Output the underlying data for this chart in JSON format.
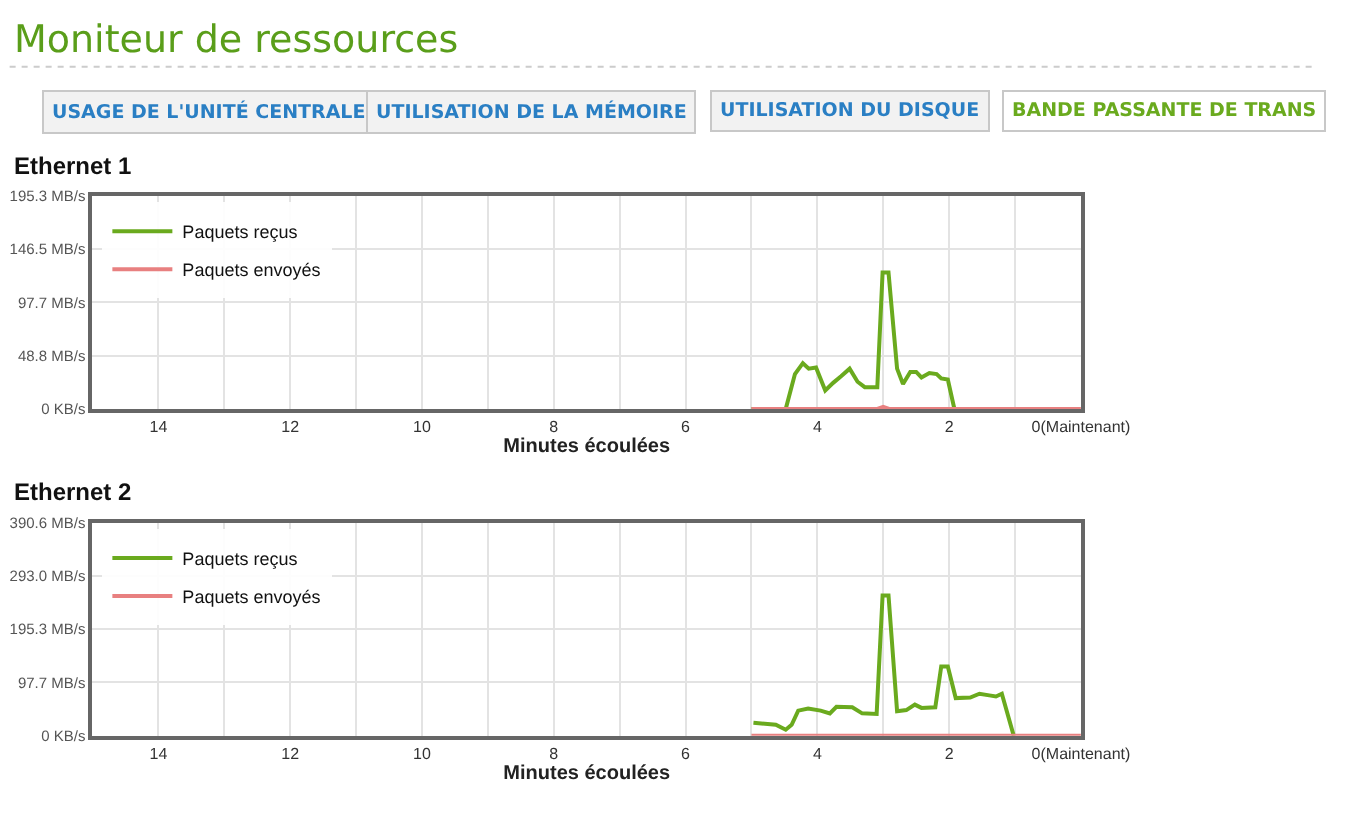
{
  "chart_data": [
    {
      "type": "other",
      "title": "Moniteur de ressources",
      "annotations": [
        "USAGE DE L'UNITÉ CENTRALE",
        "UTILISATION DE LA MÉMOIRE",
        "UTILISATION DU DISQUE",
        "BANDE PASSANTE DE TRANS"
      ]
    },
    {
      "type": "line",
      "title": "Ethernet 1",
      "xlabel": "Minutes écoulées",
      "xlim": [
        15,
        0
      ],
      "ylim": [
        0,
        195.3
      ],
      "xticks": [
        {
          "value": 15,
          "label": null
        },
        14,
        {
          "value": 13,
          "label": null
        },
        12,
        {
          "value": 11,
          "label": null
        },
        10,
        {
          "value": 9,
          "label": null
        },
        8,
        {
          "value": 7,
          "label": null
        },
        6,
        {
          "value": 5,
          "label": null
        },
        4,
        {
          "value": 3,
          "label": null
        },
        2,
        {
          "value": 1,
          "label": null
        },
        {
          "value": 0,
          "label": "0(Maintenant)"
        }
      ],
      "yticks": [
        {
          "value": 0,
          "label": "0 KB/s"
        },
        {
          "value": 48.8,
          "label": "48.8 MB/s"
        },
        {
          "value": 97.7,
          "label": "97.7 MB/s"
        },
        {
          "value": 146.5,
          "label": "146.5 MB/s"
        },
        {
          "value": 195.3,
          "label": "195.3 MB/s"
        }
      ],
      "grid": true,
      "legend": "top left",
      "marker": "none",
      "line_style": "solid",
      "series": [
        {
          "name": "Paquets reçus",
          "color": "#6aaa1e",
          "x": [
            5.0,
            4.48,
            4.34,
            4.22,
            4.13,
            4.02,
            3.88,
            3.76,
            3.64,
            3.51,
            3.39,
            3.28,
            3.09,
            3.01,
            2.92,
            2.79,
            2.7,
            2.59,
            2.5,
            2.42,
            2.3,
            2.19,
            2.12,
            2.02,
            1.92,
            1.25
          ],
          "values": [
            0,
            0,
            32,
            42,
            37,
            38,
            17,
            24,
            30,
            37,
            25,
            20,
            20,
            125,
            125,
            37,
            23,
            34,
            34,
            29,
            33,
            32,
            28,
            27,
            0,
            0
          ]
        },
        {
          "name": "Paquets envoyés",
          "color": "#e88080",
          "x": [
            5.0,
            3.1,
            3.0,
            2.9,
            0
          ],
          "values": [
            0,
            0,
            2,
            0,
            0
          ]
        }
      ]
    },
    {
      "type": "line",
      "title": "Ethernet 2",
      "xlabel": "Minutes écoulées",
      "xlim": [
        15,
        0
      ],
      "ylim": [
        0,
        390.6
      ],
      "xticks": [
        {
          "value": 15,
          "label": null
        },
        14,
        {
          "value": 13,
          "label": null
        },
        12,
        {
          "value": 11,
          "label": null
        },
        10,
        {
          "value": 9,
          "label": null
        },
        8,
        {
          "value": 7,
          "label": null
        },
        6,
        {
          "value": 5,
          "label": null
        },
        4,
        {
          "value": 3,
          "label": null
        },
        2,
        {
          "value": 1,
          "label": null
        },
        {
          "value": 0,
          "label": "0(Maintenant)"
        }
      ],
      "yticks": [
        {
          "value": 0,
          "label": "0 KB/s"
        },
        {
          "value": 97.7,
          "label": "97.7 MB/s"
        },
        {
          "value": 195.3,
          "label": "195.3 MB/s"
        },
        {
          "value": 293.0,
          "label": "293.0 MB/s"
        },
        {
          "value": 390.6,
          "label": "390.6 MB/s"
        }
      ],
      "grid": true,
      "legend": "top left",
      "marker": "none",
      "line_style": "solid",
      "series": [
        {
          "name": "Paquets reçus",
          "color": "#6aaa1e",
          "x": [
            4.97,
            4.63,
            4.48,
            4.39,
            4.29,
            4.14,
            3.95,
            3.81,
            3.71,
            3.47,
            3.32,
            3.1,
            3.01,
            2.92,
            2.79,
            2.65,
            2.52,
            2.42,
            2.21,
            2.12,
            2.02,
            1.9,
            1.68,
            1.54,
            1.39,
            1.29,
            1.2,
            1.02
          ],
          "values": [
            24,
            20,
            11,
            20,
            46,
            50,
            46,
            41,
            53,
            52,
            41,
            40,
            257,
            257,
            45,
            47,
            57,
            51,
            52,
            127,
            127,
            69,
            70,
            77,
            74,
            72,
            77,
            0
          ]
        },
        {
          "name": "Paquets envoyés",
          "color": "#e88080",
          "x": [
            5.0,
            0
          ],
          "values": [
            0,
            0
          ]
        }
      ]
    }
  ]
}
